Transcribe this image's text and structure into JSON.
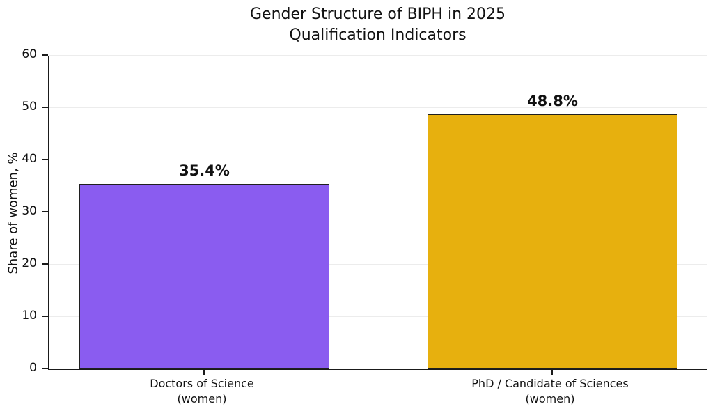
{
  "chart_data": {
    "type": "bar",
    "title": "Gender Structure of BIPH in 2025",
    "subtitle": "Qualification Indicators",
    "ylabel": "Share of women, %",
    "categories": [
      {
        "line1": "Doctors of Science",
        "line2": "(women)"
      },
      {
        "line1": "PhD / Candidate of Sciences",
        "line2": "(women)"
      }
    ],
    "values": [
      35.4,
      48.8
    ],
    "value_labels": [
      "35.4%",
      "48.8%"
    ],
    "bar_colors": [
      "#8a5cf0",
      "#e7b00e"
    ],
    "bar_edge_color": "#1f1f1f",
    "ylim": [
      0,
      60
    ],
    "yticks": [
      "0",
      "10",
      "20",
      "30",
      "40",
      "50",
      "60"
    ],
    "grid": true,
    "gridline_color": "#ececec",
    "legend": "none"
  }
}
